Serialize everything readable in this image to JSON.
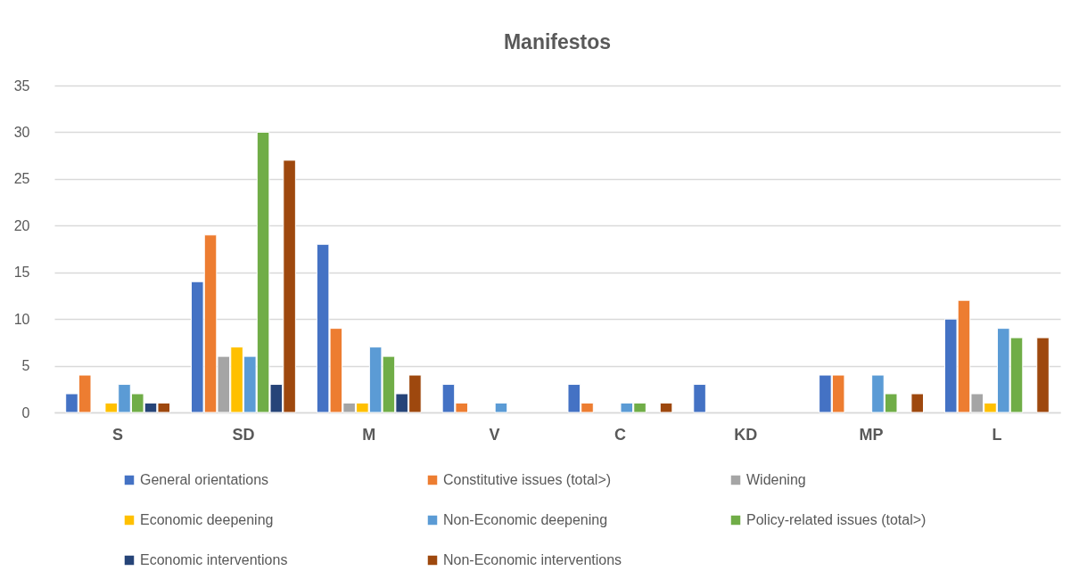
{
  "chart_data": {
    "type": "bar",
    "title": "Manifestos",
    "categories": [
      "S",
      "SD",
      "M",
      "V",
      "C",
      "KD",
      "MP",
      "L"
    ],
    "series": [
      {
        "name": "General orientations",
        "color": "#4472c4",
        "values": [
          2,
          14,
          18,
          3,
          3,
          3,
          4,
          10
        ]
      },
      {
        "name": "Constitutive issues (total>)",
        "color": "#ed7d31",
        "values": [
          4,
          19,
          9,
          1,
          1,
          null,
          4,
          12
        ]
      },
      {
        "name": "Widening",
        "color": "#a5a5a5",
        "values": [
          null,
          6,
          1,
          null,
          null,
          null,
          null,
          2
        ]
      },
      {
        "name": "Economic deepening",
        "color": "#ffc000",
        "values": [
          1,
          7,
          1,
          null,
          null,
          null,
          null,
          1
        ]
      },
      {
        "name": "Non-Economic deepening",
        "color": "#5b9bd5",
        "values": [
          3,
          6,
          7,
          1,
          1,
          null,
          4,
          9
        ]
      },
      {
        "name": "Policy-related issues (total>)",
        "color": "#70ad47",
        "values": [
          2,
          30,
          6,
          null,
          1,
          null,
          2,
          8
        ]
      },
      {
        "name": "Economic interventions",
        "color": "#264478",
        "values": [
          1,
          3,
          2,
          null,
          null,
          null,
          null,
          null
        ]
      },
      {
        "name": "Non-Economic interventions",
        "color": "#9e480e",
        "values": [
          1,
          27,
          4,
          null,
          1,
          null,
          2,
          8
        ]
      }
    ],
    "ylim": [
      0,
      35
    ],
    "yticks": [
      0,
      5,
      10,
      15,
      20,
      25,
      30,
      35
    ],
    "grid": "y",
    "legend": "bottom"
  }
}
